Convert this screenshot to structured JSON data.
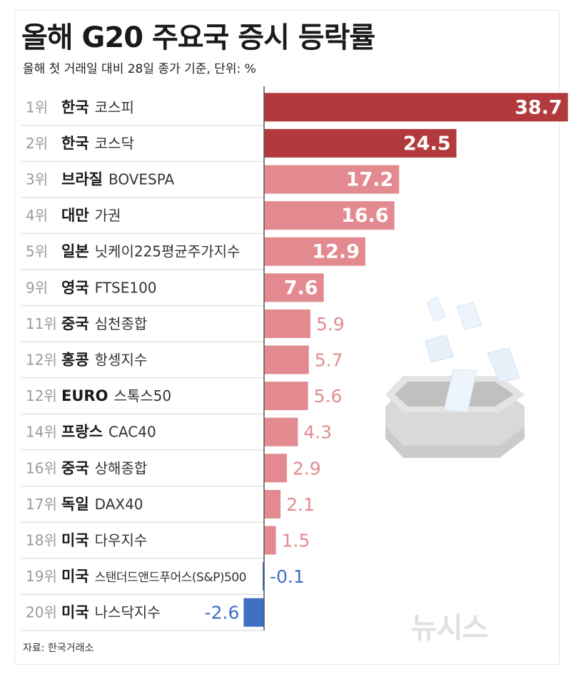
{
  "title": "올해 G20 주요국 증시 등락률",
  "subtitle": "올해 첫 거래일 대비 28일 종가 기준, 단위: %",
  "source": "자료: 한국거래소",
  "logo_text": "뉴시스",
  "colors": {
    "top": "#b23a3c",
    "positive": "#e38a90",
    "negative": "#3f6fc1",
    "rank": "#9a9a9a",
    "divider": "#d5d5d5"
  },
  "chart_data": {
    "type": "bar",
    "orientation": "horizontal",
    "title": "올해 G20 주요국 증시 등락률",
    "subtitle": "올해 첫 거래일 대비 28일 종가 기준, 단위: %",
    "unit": "%",
    "xlim": [
      -2.6,
      38.7
    ],
    "rows": [
      {
        "rank": "1위",
        "country": "한국",
        "index": "코스피",
        "value": 38.7,
        "label": "38.7"
      },
      {
        "rank": "2위",
        "country": "한국",
        "index": "코스닥",
        "value": 24.5,
        "label": "24.5"
      },
      {
        "rank": "3위",
        "country": "브라질",
        "index": "BOVESPA",
        "value": 17.2,
        "label": "17.2"
      },
      {
        "rank": "4위",
        "country": "대만",
        "index": "가권",
        "value": 16.6,
        "label": "16.6"
      },
      {
        "rank": "5위",
        "country": "일본",
        "index": "닛케이225평균주가지수",
        "value": 12.9,
        "label": "12.9"
      },
      {
        "rank": "9위",
        "country": "영국",
        "index": "FTSE100",
        "value": 7.6,
        "label": "7.6"
      },
      {
        "rank": "11위",
        "country": "중국",
        "index": "심천종합",
        "value": 5.9,
        "label": "5.9"
      },
      {
        "rank": "12위",
        "country": "홍콩",
        "index": "항셍지수",
        "value": 5.7,
        "label": "5.7"
      },
      {
        "rank": "12위",
        "country": "EURO",
        "index": "스톡스50",
        "value": 5.6,
        "label": "5.6"
      },
      {
        "rank": "14위",
        "country": "프랑스",
        "index": "CAC40",
        "value": 4.3,
        "label": "4.3"
      },
      {
        "rank": "16위",
        "country": "중국",
        "index": "상해종합",
        "value": 2.9,
        "label": "2.9"
      },
      {
        "rank": "17위",
        "country": "독일",
        "index": "DAX40",
        "value": 2.1,
        "label": "2.1"
      },
      {
        "rank": "18위",
        "country": "미국",
        "index": "다우지수",
        "value": 1.5,
        "label": "1.5"
      },
      {
        "rank": "19위",
        "country": "미국",
        "index": "스탠더드앤드푸어스(S&P)500",
        "value": -0.1,
        "label": "-0.1"
      },
      {
        "rank": "20위",
        "country": "미국",
        "index": "나스닥지수",
        "value": -2.6,
        "label": "-2.6"
      }
    ]
  }
}
